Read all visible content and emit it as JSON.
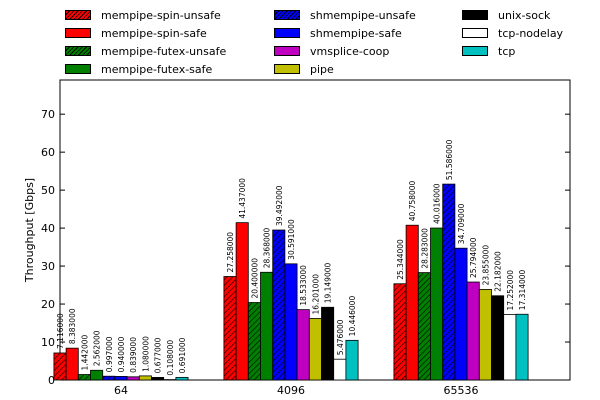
{
  "chart_data": {
    "type": "bar",
    "title": "",
    "xlabel": "",
    "ylabel": "Throughput [Gbps]",
    "ylim": [
      0,
      79
    ],
    "yticks": [
      0,
      10,
      20,
      30,
      40,
      50,
      60,
      70
    ],
    "grid": false,
    "legend_position": "top",
    "categories": [
      "64",
      "4096",
      "65536"
    ],
    "series": [
      {
        "name": "mempipe-spin-unsafe",
        "color": "#ff0000",
        "hatch": true,
        "values": [
          7.116,
          27.258,
          25.344
        ],
        "labels": [
          "7.116000",
          "27.258000",
          "25.344000"
        ]
      },
      {
        "name": "mempipe-spin-safe",
        "color": "#ff0000",
        "hatch": false,
        "values": [
          8.383,
          41.437,
          40.758
        ],
        "labels": [
          "8.383000",
          "41.437000",
          "40.758000"
        ]
      },
      {
        "name": "mempipe-futex-unsafe",
        "color": "#008000",
        "hatch": true,
        "values": [
          1.442,
          20.4,
          28.283
        ],
        "labels": [
          "1.442000",
          "20.400000",
          "28.283000"
        ]
      },
      {
        "name": "mempipe-futex-safe",
        "color": "#008000",
        "hatch": false,
        "values": [
          2.562,
          28.368,
          40.016
        ],
        "labels": [
          "2.562000",
          "28.368000",
          "40.016000"
        ]
      },
      {
        "name": "shmempipe-unsafe",
        "color": "#0000ff",
        "hatch": true,
        "values": [
          0.997,
          39.492,
          51.586
        ],
        "labels": [
          "0.997000",
          "39.492000",
          "51.586000"
        ]
      },
      {
        "name": "shmempipe-safe",
        "color": "#0000ff",
        "hatch": false,
        "values": [
          0.94,
          30.591,
          34.709
        ],
        "labels": [
          "0.940000",
          "30.591000",
          "34.709000"
        ]
      },
      {
        "name": "vmsplice-coop",
        "color": "#c000c0",
        "hatch": false,
        "values": [
          0.839,
          18.533,
          25.794
        ],
        "labels": [
          "0.839000",
          "18.533000",
          "25.794000"
        ]
      },
      {
        "name": "pipe",
        "color": "#c0c000",
        "hatch": false,
        "values": [
          1.08,
          16.201,
          23.855
        ],
        "labels": [
          "1.080000",
          "16.201000",
          "23.855000"
        ]
      },
      {
        "name": "unix-sock",
        "color": "#000000",
        "hatch": false,
        "values": [
          0.677,
          19.149,
          22.182
        ],
        "labels": [
          "0.677000",
          "19.149000",
          "22.182000"
        ]
      },
      {
        "name": "tcp-nodelay",
        "color": "#ffffff",
        "hatch": false,
        "values": [
          0.108,
          5.476,
          17.252
        ],
        "labels": [
          "0.108000",
          "5.476000",
          "17.252000"
        ]
      },
      {
        "name": "tcp",
        "color": "#00c0c0",
        "hatch": false,
        "values": [
          0.691,
          10.446,
          17.314
        ],
        "labels": [
          "0.691000",
          "10.446000",
          "17.314000"
        ]
      }
    ]
  }
}
